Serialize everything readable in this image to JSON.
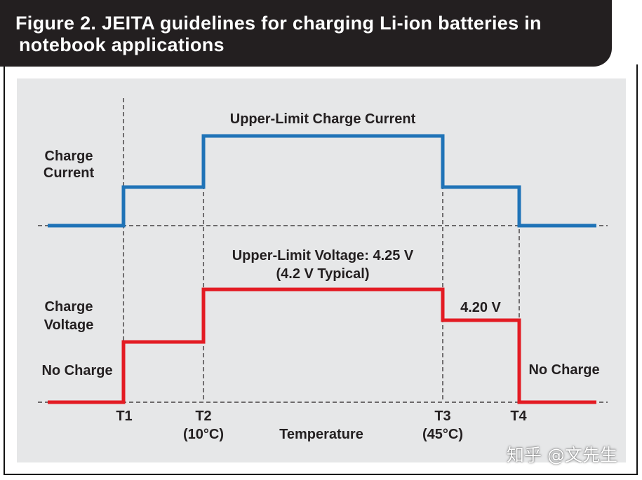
{
  "title": {
    "line1": "Figure 2. JEITA guidelines for charging Li-ion batteries in",
    "line2": "notebook applications"
  },
  "colors": {
    "current_line": "#1f73b7",
    "voltage_line": "#e31b23",
    "panel_bg": "#e6e7e8",
    "title_bg": "#231f20"
  },
  "diagram": {
    "current_axis_label": [
      "Charge",
      "Current"
    ],
    "voltage_axis_label": [
      "Charge",
      "Voltage"
    ],
    "current_max_label": "Upper-Limit Charge Current",
    "voltage_max_label": [
      "Upper-Limit Voltage: 4.25 V",
      "(4.2 V Typical)"
    ],
    "voltage_step_label": "4.20 V",
    "no_charge_left": "No Charge",
    "no_charge_right": "No Charge",
    "x_axis_label": "Temperature",
    "ticks": [
      {
        "name": "T1",
        "temp": ""
      },
      {
        "name": "T2",
        "temp": "(10°C)"
      },
      {
        "name": "T3",
        "temp": "(45°C)"
      },
      {
        "name": "T4",
        "temp": ""
      }
    ]
  },
  "watermark": "知乎 @文先生"
}
